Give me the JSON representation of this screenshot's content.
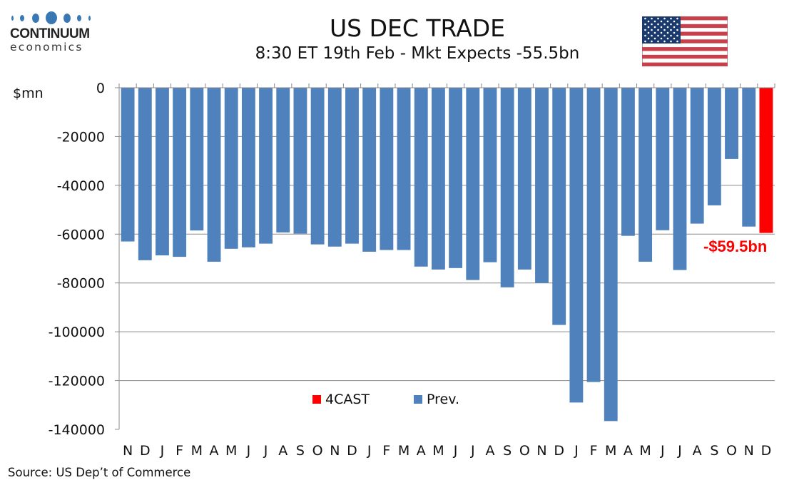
{
  "logo": {
    "name": "CONTINUUM",
    "sub": "economics"
  },
  "header": {
    "title": "US DEC TRADE",
    "subtitle": "8:30 ET 19th Feb - Mkt Expects -55.5bn",
    "flag_icon": "us-flag-icon"
  },
  "unit_label": "$mn",
  "source": "Source: US Dep’t of Commerce",
  "forecast_label": "-$59.5bn",
  "colors": {
    "prev": "#4f81bd",
    "forecast": "#ff0000",
    "grid": "#8c8c8c"
  },
  "chart_data": {
    "type": "bar",
    "title": "US DEC TRADE",
    "subtitle": "8:30 ET 19th Feb - Mkt Expects -55.5bn",
    "xlabel": "",
    "ylabel": "$mn",
    "ylim": [
      -140000,
      0
    ],
    "yticks": [
      0,
      -20000,
      -40000,
      -60000,
      -80000,
      -100000,
      -120000,
      -140000
    ],
    "grid": true,
    "legend_position": "bottom-center",
    "categories": [
      "N",
      "D",
      "J",
      "F",
      "M",
      "A",
      "M",
      "J",
      "J",
      "A",
      "S",
      "O",
      "N",
      "D",
      "J",
      "F",
      "M",
      "A",
      "M",
      "J",
      "J",
      "A",
      "S",
      "O",
      "N",
      "D",
      "J",
      "F",
      "M",
      "A",
      "M",
      "J",
      "J",
      "A",
      "S",
      "O",
      "N",
      "D"
    ],
    "series": [
      {
        "name": "Prev.",
        "color": "#4f81bd",
        "values": [
          -63000,
          -70700,
          -68700,
          -69300,
          -58500,
          -71300,
          -66000,
          -65400,
          -63900,
          -59300,
          -59800,
          -64200,
          -65100,
          -63900,
          -67200,
          -66500,
          -66500,
          -73300,
          -74500,
          -73900,
          -78800,
          -71500,
          -81800,
          -74500,
          -80000,
          -97200,
          -129000,
          -120600,
          -136600,
          -60700,
          -71300,
          -58400,
          -74700,
          -55700,
          -48200,
          -29200,
          -56900,
          null
        ]
      },
      {
        "name": "4CAST",
        "color": "#ff0000",
        "values": [
          null,
          null,
          null,
          null,
          null,
          null,
          null,
          null,
          null,
          null,
          null,
          null,
          null,
          null,
          null,
          null,
          null,
          null,
          null,
          null,
          null,
          null,
          null,
          null,
          null,
          null,
          null,
          null,
          null,
          null,
          null,
          null,
          null,
          null,
          null,
          null,
          null,
          -59500
        ]
      }
    ],
    "annotations": [
      "-$59.5bn"
    ],
    "legend": [
      "4CAST",
      "Prev."
    ]
  }
}
